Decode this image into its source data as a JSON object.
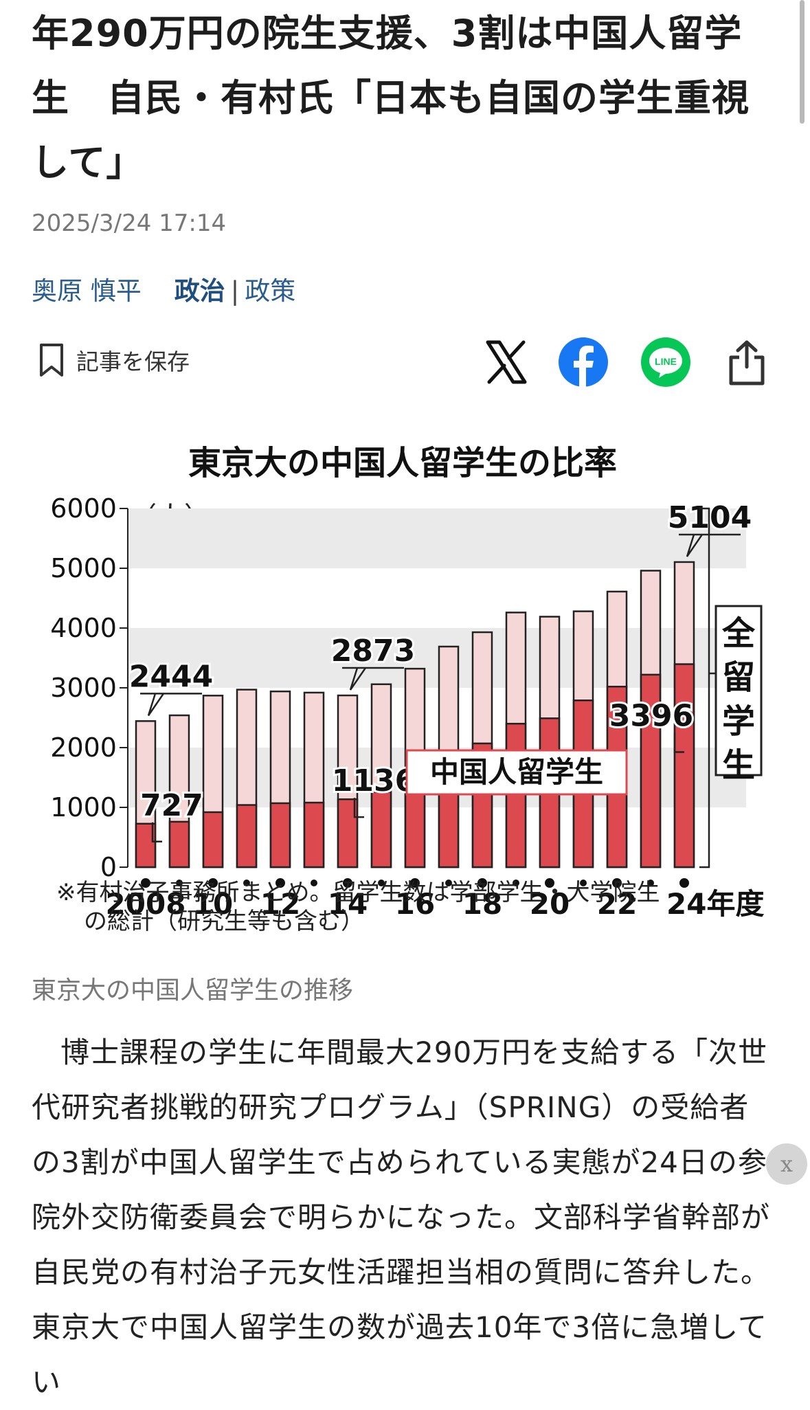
{
  "article": {
    "title": "年290万円の院生支援、3割は中国人留学生　自民・有村氏「日本も自国の学生重視して」",
    "datetime": "2025/3/24 17:14",
    "author": "奥原 慎平",
    "category": "政治",
    "separator": "|",
    "subcategory": "政策",
    "save_label": "記事を保存",
    "image_caption": "東京大の中国人留学生の推移",
    "body": "博士課程の学生に年間最大290万円を支給する「次世代研究者挑戦的研究プログラム」（SPRING）の受給者の3割が中国人留学生で占められている実態が24日の参院外交防衛委員会で明らかになった。文部科学省幹部が自民党の有村治子元女性活躍担当相の質問に答弁した。東京大で中国人留学生の数が過去10年で3倍に急増してい"
  },
  "share": {
    "icons": [
      "x-logo-icon",
      "facebook-icon",
      "line-icon",
      "share-icon"
    ],
    "colors": {
      "facebook": "#1877F2",
      "line": "#06C755"
    }
  },
  "close_label": "x",
  "chart_data": {
    "type": "bar",
    "title": "東京大の中国人留学生の比率",
    "unit_label": "（人）",
    "ylim": [
      0,
      6000
    ],
    "yticks": [
      0,
      1000,
      2000,
      3000,
      4000,
      5000,
      6000
    ],
    "x": [
      2008,
      2009,
      2010,
      2011,
      2012,
      2013,
      2014,
      2015,
      2016,
      2017,
      2018,
      2019,
      2020,
      2021,
      2022,
      2023,
      2024
    ],
    "xtick_labels": [
      "2008",
      "10",
      "12",
      "14",
      "16",
      "18",
      "20",
      "22",
      "24年度"
    ],
    "series": [
      {
        "name": "全留学生",
        "values": [
          2444,
          2540,
          2870,
          2970,
          2940,
          2920,
          2873,
          3060,
          3320,
          3690,
          3930,
          4260,
          4190,
          4280,
          4610,
          4960,
          5104
        ]
      },
      {
        "name": "中国人留学生",
        "values": [
          727,
          760,
          920,
          1040,
          1070,
          1080,
          1136,
          1260,
          1470,
          1780,
          2070,
          2400,
          2490,
          2790,
          3020,
          3220,
          3396
        ]
      }
    ],
    "annotations": [
      {
        "year": 2008,
        "series": "全留学生",
        "label": "2444"
      },
      {
        "year": 2008,
        "series": "中国人留学生",
        "label": "727"
      },
      {
        "year": 2014,
        "series": "全留学生",
        "label": "2873"
      },
      {
        "year": 2014,
        "series": "中国人留学生",
        "label": "1136"
      },
      {
        "year": 2024,
        "series": "全留学生",
        "label": "5104"
      },
      {
        "year": 2024,
        "series": "中国人留学生",
        "label": "3396"
      }
    ],
    "legend": {
      "total": "全留学生",
      "chinese": "中国人留学生"
    },
    "note": "※有村治子事務所まとめ。留学生数は学部学生・大学院生の総計（研究生等も含む）",
    "colors": {
      "total": "#f6d7d7",
      "chinese": "#dc4a4f",
      "outline": "#222222",
      "band": "#eaeaea"
    }
  }
}
